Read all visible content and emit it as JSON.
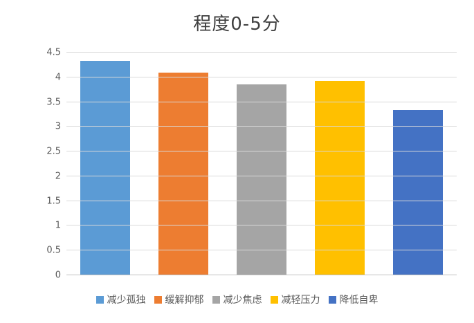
{
  "chart_data": {
    "type": "bar",
    "title": "程度0-5分",
    "categories": [
      "减少孤独",
      "缓解抑郁",
      "减少焦虑",
      "减轻压力",
      "降低自卑"
    ],
    "values": [
      4.33,
      4.1,
      3.86,
      3.93,
      3.34
    ],
    "colors": [
      "#5B9BD5",
      "#ED7D31",
      "#A5A5A5",
      "#FFC000",
      "#4472C4"
    ],
    "xlabel": "",
    "ylabel": "",
    "ylim": [
      0,
      4.5
    ],
    "ytick_labels": [
      "0",
      "0.5",
      "1",
      "1.5",
      "2",
      "2.5",
      "3",
      "3.5",
      "4",
      "4.5"
    ],
    "grid": true,
    "legend_position": "bottom"
  }
}
